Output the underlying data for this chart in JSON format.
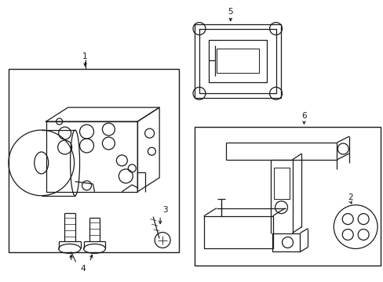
{
  "background_color": "#ffffff",
  "line_color": "#1a1a1a",
  "fig_width": 4.89,
  "fig_height": 3.6,
  "dpi": 100,
  "label_fontsize": 7.5
}
